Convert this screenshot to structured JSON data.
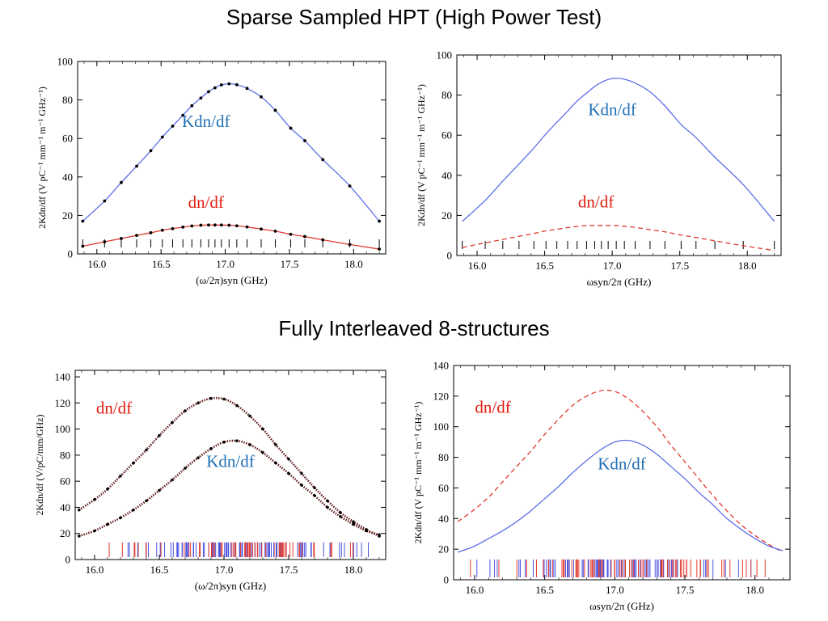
{
  "titles": {
    "top": "Sparse Sampled HPT (High Power Test)",
    "bottom": "Fully Interleaved  8-structures"
  },
  "colors": {
    "blue": "#5d6ee8",
    "red": "#e23a2e",
    "black": "#000000",
    "label_blue": "#1f6fb4",
    "label_red": "#e01e10"
  },
  "chart_data": [
    {
      "id": "top-left",
      "type": "line",
      "xlabel": "(ω/2π)syn (GHz)",
      "ylabel": "2Kdn/df (V pC⁻¹ mm⁻¹ m⁻¹ GHz⁻¹)",
      "xlim": [
        15.85,
        18.25
      ],
      "ylim": [
        0,
        100
      ],
      "xticks": [
        16.0,
        16.5,
        17.0,
        17.5,
        18.0
      ],
      "xtick_labels": [
        "16.0",
        "16.5",
        "17.0",
        "17.5",
        "18.0"
      ],
      "yticks": [
        0,
        20,
        40,
        60,
        80,
        100
      ],
      "ytick_labels": [
        "0",
        "20",
        "40",
        "60",
        "80",
        "100"
      ],
      "series": [
        {
          "name": "Kdn/df",
          "style": "solid",
          "color": "#5d6ee8",
          "markers": true,
          "x": [
            15.89,
            16.06,
            16.19,
            16.31,
            16.42,
            16.51,
            16.59,
            16.67,
            16.74,
            16.81,
            16.87,
            16.92,
            16.97,
            17.03,
            17.09,
            17.17,
            17.28,
            17.39,
            17.51,
            17.62,
            17.76,
            17.97,
            18.2
          ],
          "y": [
            17,
            27.5,
            37.1,
            45.6,
            53.6,
            60.7,
            66.4,
            72,
            77,
            81,
            84.3,
            86.3,
            87.8,
            88.4,
            87.9,
            86,
            81.6,
            74.6,
            65.3,
            58.8,
            49,
            35.3,
            17
          ]
        },
        {
          "name": "dn/df",
          "style": "solid",
          "color": "#e23a2e",
          "markers": true,
          "x": [
            15.89,
            16.06,
            16.19,
            16.31,
            16.42,
            16.51,
            16.59,
            16.67,
            16.74,
            16.81,
            16.87,
            16.92,
            16.97,
            17.03,
            17.09,
            17.17,
            17.28,
            17.39,
            17.51,
            17.62,
            17.76,
            17.97,
            18.2
          ],
          "y": [
            4,
            6.3,
            8,
            9.6,
            11,
            12.3,
            13.1,
            13.9,
            14.5,
            14.9,
            15,
            15,
            15,
            14.9,
            14.6,
            14,
            12.9,
            11.8,
            10.2,
            9,
            7.3,
            4.9,
            2.5
          ]
        }
      ],
      "rug": {
        "x": [
          15.89,
          16.06,
          16.19,
          16.31,
          16.42,
          16.51,
          16.59,
          16.67,
          16.74,
          16.81,
          16.87,
          16.92,
          16.97,
          17.03,
          17.09,
          17.17,
          17.28,
          17.39,
          17.51,
          17.62,
          17.76,
          17.97,
          18.2
        ],
        "height": 5,
        "colors": [
          "#000000"
        ]
      },
      "labels": [
        {
          "text": "Kdn/df",
          "x": 16.85,
          "y": 66,
          "color": "#1f6fb4"
        },
        {
          "text": "dn/df",
          "x": 16.85,
          "y": 24,
          "color": "#e01e10"
        }
      ]
    },
    {
      "id": "top-right",
      "type": "line",
      "xlabel": "ωsyn/2π (GHz)",
      "ylabel": "2Kdn/df (V pC⁻¹ mm⁻¹ m⁻¹ GHz⁻¹)",
      "xlim": [
        15.85,
        18.25
      ],
      "ylim": [
        0,
        100
      ],
      "xticks": [
        16.0,
        16.5,
        17.0,
        17.5,
        18.0
      ],
      "xtick_labels": [
        "16.0",
        "16.5",
        "17.0",
        "17.5",
        "18.0"
      ],
      "yticks": [
        0,
        20,
        40,
        60,
        80,
        100
      ],
      "ytick_labels": [
        "0",
        "20",
        "40",
        "60",
        "80",
        "100"
      ],
      "series": [
        {
          "name": "Kdn/df",
          "style": "solid",
          "color": "#5d6ee8",
          "markers": false,
          "x": [
            15.89,
            16.06,
            16.19,
            16.31,
            16.42,
            16.51,
            16.59,
            16.67,
            16.74,
            16.81,
            16.87,
            16.92,
            16.97,
            17.03,
            17.09,
            17.17,
            17.28,
            17.39,
            17.51,
            17.62,
            17.76,
            17.97,
            18.2
          ],
          "y": [
            17,
            27.5,
            37.1,
            45.6,
            53.6,
            60.7,
            66.4,
            72,
            77,
            81,
            84.3,
            86.3,
            87.8,
            88.4,
            87.9,
            86,
            81.6,
            74.6,
            65.3,
            58.8,
            49,
            35.3,
            17
          ]
        },
        {
          "name": "dn/df",
          "style": "dashed",
          "color": "#e23a2e",
          "markers": false,
          "x": [
            15.89,
            16.06,
            16.19,
            16.31,
            16.42,
            16.51,
            16.59,
            16.67,
            16.74,
            16.81,
            16.87,
            16.92,
            16.97,
            17.03,
            17.09,
            17.17,
            17.28,
            17.39,
            17.51,
            17.62,
            17.76,
            17.97,
            18.2
          ],
          "y": [
            4,
            6.3,
            8,
            9.6,
            11,
            12.3,
            13.1,
            13.9,
            14.5,
            14.9,
            15,
            15,
            15,
            14.9,
            14.6,
            14,
            12.9,
            11.8,
            10.2,
            9,
            7.3,
            4.9,
            2.5
          ]
        }
      ],
      "rug": {
        "x": [
          15.89,
          16.06,
          16.19,
          16.31,
          16.42,
          16.51,
          16.59,
          16.67,
          16.74,
          16.81,
          16.87,
          16.92,
          16.97,
          17.03,
          17.09,
          17.17,
          17.28,
          17.39,
          17.51,
          17.62,
          17.76,
          17.97,
          18.2
        ],
        "height": 5,
        "colors": [
          "#000000"
        ]
      },
      "labels": [
        {
          "text": "Kdn/df",
          "x": 17.0,
          "y": 70,
          "color": "#1f6fb4"
        },
        {
          "text": "dn/df",
          "x": 16.88,
          "y": 24,
          "color": "#e01e10"
        }
      ]
    },
    {
      "id": "bottom-left",
      "type": "scatter",
      "xlabel": "(ω/2π)syn (GHz)",
      "ylabel": "2Kdn/df (V/pC/mm/GHz)",
      "xlim": [
        15.85,
        18.25
      ],
      "ylim": [
        0,
        145
      ],
      "xticks": [
        16.0,
        16.5,
        17.0,
        17.5,
        18.0
      ],
      "xtick_labels": [
        "16.0",
        "16.5",
        "17.0",
        "17.5",
        "18.0"
      ],
      "yticks": [
        0,
        20,
        40,
        60,
        80,
        100,
        120,
        140
      ],
      "ytick_labels": [
        "0",
        "20",
        "40",
        "60",
        "80",
        "100",
        "120",
        "140"
      ],
      "series": [
        {
          "name": "dn/df",
          "style": "markers",
          "color": "#000000",
          "markers": true,
          "x": [
            15.88,
            16.0,
            16.1,
            16.2,
            16.3,
            16.4,
            16.5,
            16.6,
            16.7,
            16.8,
            16.9,
            17.0,
            17.1,
            17.2,
            17.3,
            17.4,
            17.5,
            17.6,
            17.7,
            17.8,
            17.9,
            18.0,
            18.1,
            18.2
          ],
          "y": [
            38,
            46,
            54,
            64,
            74,
            84,
            95,
            105,
            114,
            120,
            123.5,
            123,
            118,
            110,
            100,
            88,
            77,
            66,
            55,
            45,
            36,
            29,
            23,
            18
          ]
        },
        {
          "name": "Kdn/df",
          "style": "markers",
          "color": "#000000",
          "markers": true,
          "x": [
            15.88,
            16.0,
            16.1,
            16.2,
            16.3,
            16.4,
            16.5,
            16.6,
            16.7,
            16.8,
            16.9,
            17.0,
            17.1,
            17.2,
            17.3,
            17.4,
            17.5,
            17.6,
            17.7,
            17.8,
            17.9,
            18.0,
            18.1,
            18.2
          ],
          "y": [
            18,
            22,
            27,
            32,
            38,
            45,
            53,
            61,
            70,
            78,
            85,
            90,
            91,
            88,
            82,
            74,
            66,
            57,
            49,
            40,
            33,
            27,
            22,
            19
          ]
        }
      ],
      "rug": {
        "density": 150,
        "height": 14,
        "colors": [
          "#e23a2e",
          "#4a52e0"
        ]
      },
      "labels": [
        {
          "text": "dn/df",
          "x": 16.15,
          "y": 112,
          "color": "#e01e10"
        },
        {
          "text": "Kdn/df",
          "x": 17.05,
          "y": 71,
          "color": "#1f6fb4"
        }
      ]
    },
    {
      "id": "bottom-right",
      "type": "line",
      "xlabel": "ωsyn/2π (GHz)",
      "ylabel": "2Kdn/df (V pC⁻¹ mm⁻¹ m⁻¹ GHz⁻¹)",
      "xlim": [
        15.85,
        18.25
      ],
      "ylim": [
        0,
        140
      ],
      "xticks": [
        16.0,
        16.5,
        17.0,
        17.5,
        18.0
      ],
      "xtick_labels": [
        "16.0",
        "16.5",
        "17.0",
        "17.5",
        "18.0"
      ],
      "yticks": [
        0,
        20,
        40,
        60,
        80,
        100,
        120,
        140
      ],
      "ytick_labels": [
        "0",
        "20",
        "40",
        "60",
        "80",
        "100",
        "120",
        "140"
      ],
      "series": [
        {
          "name": "dn/df",
          "style": "dashed",
          "color": "#e23a2e",
          "markers": false,
          "x": [
            15.88,
            16.0,
            16.1,
            16.2,
            16.3,
            16.4,
            16.5,
            16.6,
            16.7,
            16.8,
            16.9,
            17.0,
            17.1,
            17.2,
            17.3,
            17.4,
            17.5,
            17.6,
            17.7,
            17.8,
            17.9,
            18.0,
            18.1,
            18.2
          ],
          "y": [
            38,
            46,
            54,
            64,
            74,
            84,
            95,
            105,
            114,
            120,
            123.5,
            123,
            118,
            110,
            100,
            88,
            77,
            66,
            55,
            45,
            36,
            29,
            23,
            18
          ]
        },
        {
          "name": "Kdn/df",
          "style": "solid",
          "color": "#5d6ee8",
          "markers": false,
          "x": [
            15.88,
            16.0,
            16.1,
            16.2,
            16.3,
            16.4,
            16.5,
            16.6,
            16.7,
            16.8,
            16.9,
            17.0,
            17.1,
            17.2,
            17.3,
            17.4,
            17.5,
            17.6,
            17.7,
            17.8,
            17.9,
            18.0,
            18.1,
            18.2
          ],
          "y": [
            18,
            22,
            27,
            32,
            38,
            45,
            53,
            61,
            70,
            78,
            85,
            90,
            91,
            88,
            82,
            74,
            66,
            57,
            49,
            40,
            33,
            27,
            22,
            19
          ]
        }
      ],
      "rug": {
        "density": 150,
        "height": 17,
        "colors": [
          "#e23a2e",
          "#4a52e0"
        ]
      },
      "labels": [
        {
          "text": "dn/df",
          "x": 16.13,
          "y": 109,
          "color": "#e01e10"
        },
        {
          "text": "Kdn/df",
          "x": 17.05,
          "y": 72,
          "color": "#1f6fb4"
        }
      ]
    }
  ]
}
